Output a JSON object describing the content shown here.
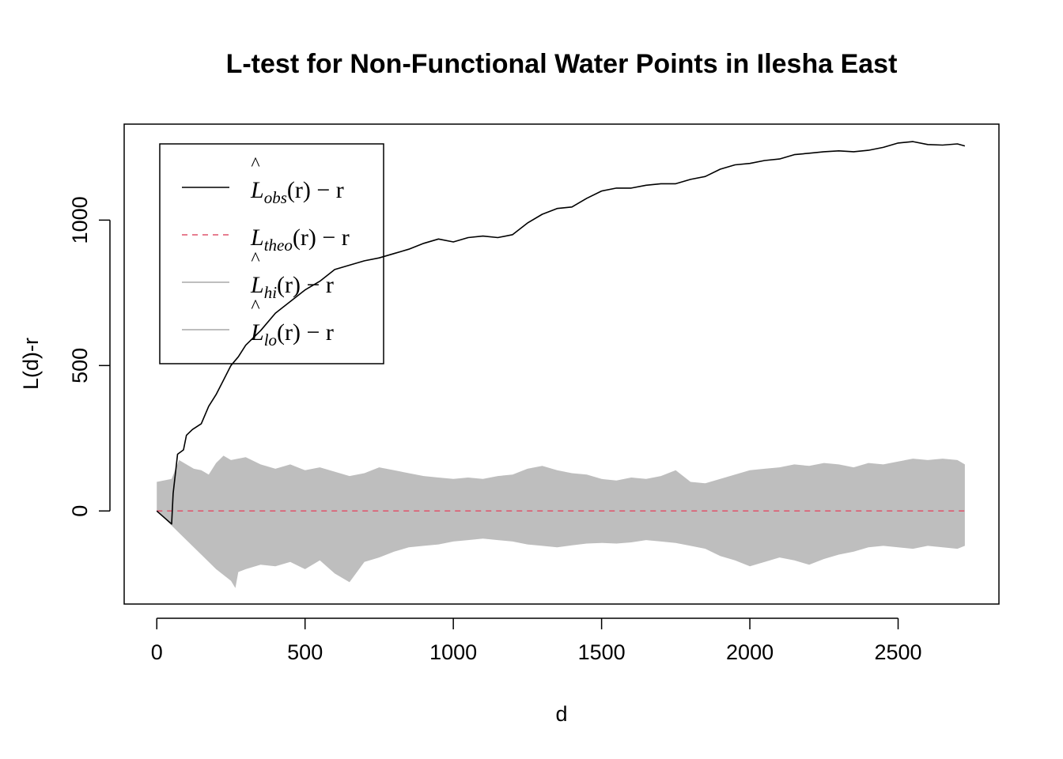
{
  "chart_data": {
    "type": "line",
    "title": "L-test for Non-Functional Water Points in Ilesha East",
    "xlabel": "d",
    "ylabel": "L(d)-r",
    "xlim": [
      -110,
      2840
    ],
    "ylim": [
      -320,
      1330
    ],
    "x_ticks": [
      0,
      500,
      1000,
      1500,
      2000,
      2500
    ],
    "y_ticks": [
      0,
      500,
      1000
    ],
    "legend_position": "top-left",
    "series": [
      {
        "name": "obs",
        "style": "solid",
        "color": "#000000",
        "x": [
          0,
          50,
          55,
          70,
          90,
          100,
          120,
          150,
          175,
          200,
          225,
          250,
          275,
          300,
          350,
          400,
          450,
          500,
          550,
          600,
          650,
          700,
          750,
          800,
          850,
          900,
          950,
          1000,
          1050,
          1100,
          1150,
          1200,
          1250,
          1300,
          1350,
          1400,
          1450,
          1500,
          1550,
          1600,
          1650,
          1700,
          1750,
          1800,
          1850,
          1900,
          1950,
          2000,
          2050,
          2100,
          2150,
          2200,
          2250,
          2300,
          2350,
          2400,
          2450,
          2500,
          2550,
          2600,
          2650,
          2700,
          2725
        ],
        "y": [
          0,
          -45,
          60,
          195,
          210,
          260,
          280,
          300,
          360,
          400,
          450,
          500,
          530,
          570,
          620,
          680,
          720,
          760,
          790,
          830,
          845,
          860,
          870,
          885,
          900,
          920,
          935,
          925,
          940,
          945,
          940,
          950,
          990,
          1020,
          1040,
          1045,
          1075,
          1100,
          1110,
          1110,
          1120,
          1125,
          1125,
          1140,
          1150,
          1175,
          1190,
          1195,
          1205,
          1210,
          1225,
          1230,
          1235,
          1238,
          1235,
          1240,
          1250,
          1265,
          1270,
          1260,
          1258,
          1262,
          1255
        ]
      },
      {
        "name": "theo",
        "style": "dashed",
        "color": "#df536b",
        "x": [
          0,
          2725
        ],
        "y": [
          0,
          0
        ]
      },
      {
        "name": "hi",
        "style": "band",
        "color": "#bebebe",
        "x": [
          0,
          50,
          75,
          100,
          125,
          150,
          175,
          200,
          225,
          250,
          300,
          350,
          400,
          450,
          500,
          550,
          600,
          650,
          700,
          750,
          800,
          850,
          900,
          950,
          1000,
          1050,
          1100,
          1150,
          1200,
          1250,
          1300,
          1350,
          1400,
          1450,
          1500,
          1550,
          1600,
          1650,
          1700,
          1750,
          1800,
          1850,
          1900,
          1950,
          2000,
          2050,
          2100,
          2150,
          2200,
          2250,
          2300,
          2350,
          2400,
          2450,
          2500,
          2550,
          2600,
          2650,
          2700,
          2725
        ],
        "y": [
          100,
          110,
          175,
          160,
          145,
          140,
          125,
          165,
          190,
          175,
          185,
          160,
          145,
          160,
          140,
          150,
          135,
          120,
          130,
          150,
          140,
          130,
          120,
          115,
          110,
          115,
          110,
          120,
          125,
          145,
          155,
          140,
          130,
          125,
          110,
          105,
          115,
          110,
          120,
          140,
          100,
          95,
          110,
          125,
          140,
          145,
          150,
          160,
          155,
          165,
          160,
          150,
          165,
          160,
          170,
          180,
          175,
          180,
          175,
          160
        ]
      },
      {
        "name": "lo",
        "style": "band",
        "color": "#bebebe",
        "x": [
          0,
          50,
          100,
          150,
          200,
          250,
          265,
          275,
          300,
          350,
          400,
          450,
          500,
          550,
          600,
          650,
          700,
          750,
          800,
          850,
          900,
          950,
          1000,
          1050,
          1100,
          1150,
          1200,
          1250,
          1300,
          1350,
          1400,
          1450,
          1500,
          1550,
          1600,
          1650,
          1700,
          1750,
          1800,
          1850,
          1900,
          1950,
          2000,
          2050,
          2100,
          2150,
          2200,
          2250,
          2300,
          2350,
          2400,
          2450,
          2500,
          2550,
          2600,
          2650,
          2700,
          2725
        ],
        "y": [
          0,
          -50,
          -100,
          -150,
          -200,
          -240,
          -265,
          -210,
          -200,
          -185,
          -190,
          -175,
          -200,
          -170,
          -215,
          -245,
          -175,
          -160,
          -140,
          -125,
          -120,
          -115,
          -105,
          -100,
          -95,
          -100,
          -105,
          -115,
          -120,
          -125,
          -118,
          -112,
          -110,
          -112,
          -108,
          -100,
          -105,
          -110,
          -120,
          -130,
          -155,
          -170,
          -190,
          -175,
          -160,
          -170,
          -185,
          -165,
          -150,
          -140,
          -125,
          -120,
          -125,
          -130,
          -120,
          -125,
          -130,
          -120
        ]
      }
    ]
  },
  "legend": {
    "items": [
      {
        "letter": "L",
        "sub": "obs",
        "hat": "^",
        "rest": "(r) − r"
      },
      {
        "letter": "L",
        "sub": "theo",
        "hat": "",
        "rest": "(r) − r"
      },
      {
        "letter": "L",
        "sub": "hi",
        "hat": "^",
        "rest": "(r) − r"
      },
      {
        "letter": "L",
        "sub": "lo",
        "hat": "^",
        "rest": "(r) − r"
      }
    ]
  }
}
